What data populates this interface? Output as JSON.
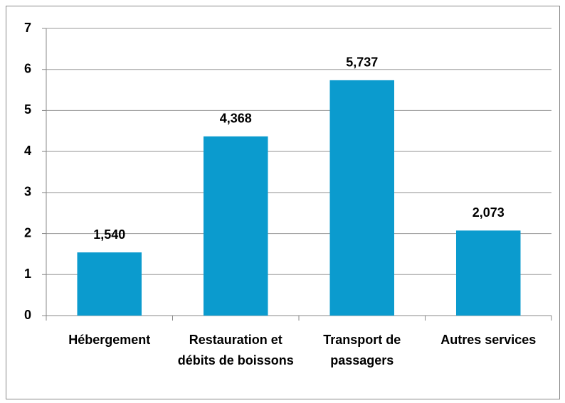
{
  "chart_data": {
    "type": "bar",
    "categories": [
      "Hébergement",
      "Restauration et débits de boissons",
      "Transport de passagers",
      "Autres services"
    ],
    "values": [
      1.54,
      4.368,
      5.737,
      2.073
    ],
    "value_labels": [
      "1,540",
      "4,368",
      "5,737",
      "2,073"
    ],
    "color": "#0b9bce",
    "ylim": [
      0,
      7
    ],
    "yticks": [
      0,
      1,
      2,
      3,
      4,
      5,
      6,
      7
    ],
    "grid": true
  }
}
